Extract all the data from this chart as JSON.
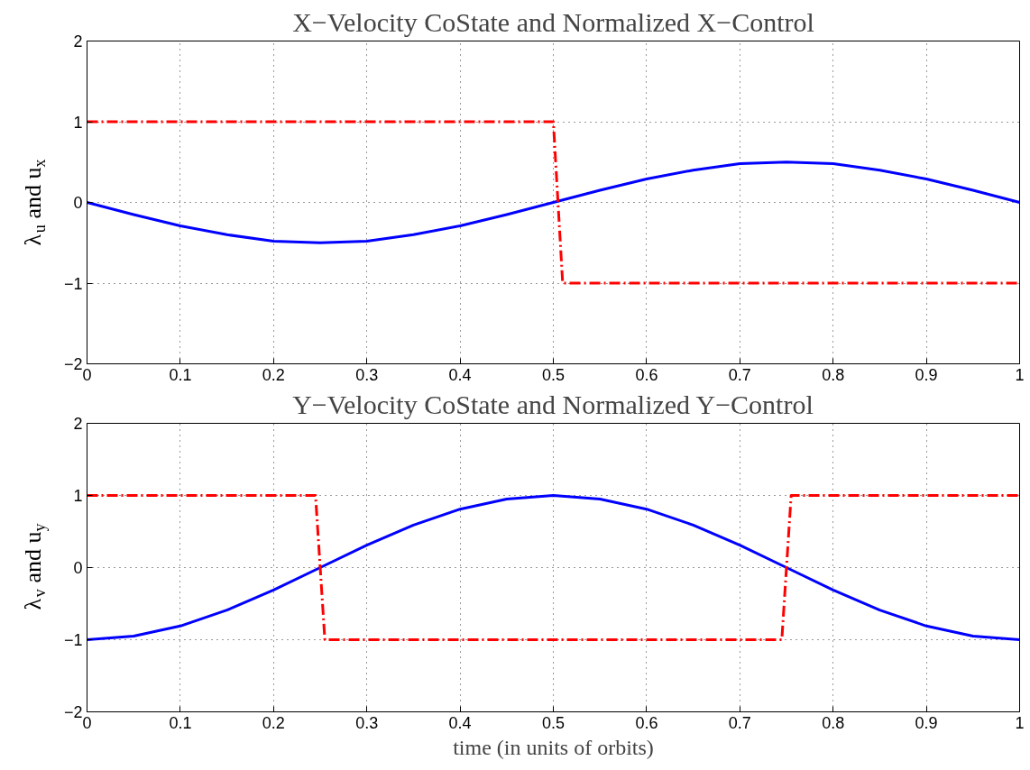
{
  "chart_data": [
    {
      "type": "line",
      "title": "X−Velocity CoState and Normalized X−Control",
      "ylabel": "λ$_{u}$ and u$_{x}$",
      "xlim": [
        0,
        1
      ],
      "ylim": [
        -2,
        2
      ],
      "xticks": [
        0,
        0.1,
        0.2,
        0.3,
        0.4,
        0.5,
        0.6,
        0.7,
        0.8,
        0.9,
        1
      ],
      "yticks": [
        -2,
        -1,
        0,
        1,
        2
      ],
      "grid": true,
      "series": [
        {
          "color": "#0000ff",
          "line_style": "solid",
          "x": [
            0,
            0.05,
            0.1,
            0.15,
            0.2,
            0.25,
            0.3,
            0.35,
            0.4,
            0.45,
            0.5,
            0.55,
            0.6,
            0.65,
            0.7,
            0.75,
            0.8,
            0.85,
            0.9,
            0.95,
            1
          ],
          "values": [
            0,
            -0.15,
            -0.29,
            -0.4,
            -0.48,
            -0.5,
            -0.48,
            -0.4,
            -0.29,
            -0.15,
            0,
            0.15,
            0.29,
            0.4,
            0.48,
            0.5,
            0.48,
            0.4,
            0.29,
            0.15,
            0
          ]
        },
        {
          "color": "#ff0000",
          "line_style": "dashed",
          "x": [
            0,
            0.5,
            0.51,
            1
          ],
          "values": [
            1,
            1,
            -1,
            -1
          ]
        }
      ]
    },
    {
      "type": "line",
      "title": "Y−Velocity CoState and Normalized Y−Control",
      "ylabel": "λ$_{v}$ and u$_{y}$",
      "xlabel": "time (in units of orbits)",
      "xlim": [
        0,
        1
      ],
      "ylim": [
        -2,
        2
      ],
      "xticks": [
        0,
        0.1,
        0.2,
        0.3,
        0.4,
        0.5,
        0.6,
        0.7,
        0.8,
        0.9,
        1
      ],
      "yticks": [
        -2,
        -1,
        0,
        1,
        2
      ],
      "grid": true,
      "series": [
        {
          "color": "#0000ff",
          "line_style": "solid",
          "x": [
            0,
            0.05,
            0.1,
            0.15,
            0.2,
            0.25,
            0.3,
            0.35,
            0.4,
            0.45,
            0.5,
            0.55,
            0.6,
            0.65,
            0.7,
            0.75,
            0.8,
            0.85,
            0.9,
            0.95,
            1
          ],
          "values": [
            -1,
            -0.95,
            -0.81,
            -0.59,
            -0.31,
            0,
            0.31,
            0.59,
            0.81,
            0.95,
            1,
            0.95,
            0.81,
            0.59,
            0.31,
            0,
            -0.31,
            -0.59,
            -0.81,
            -0.95,
            -1
          ]
        },
        {
          "color": "#ff0000",
          "line_style": "dashed",
          "x": [
            0,
            0.245,
            0.255,
            0.745,
            0.755,
            1
          ],
          "values": [
            1,
            1,
            -1,
            -1,
            1,
            1
          ]
        }
      ]
    }
  ]
}
